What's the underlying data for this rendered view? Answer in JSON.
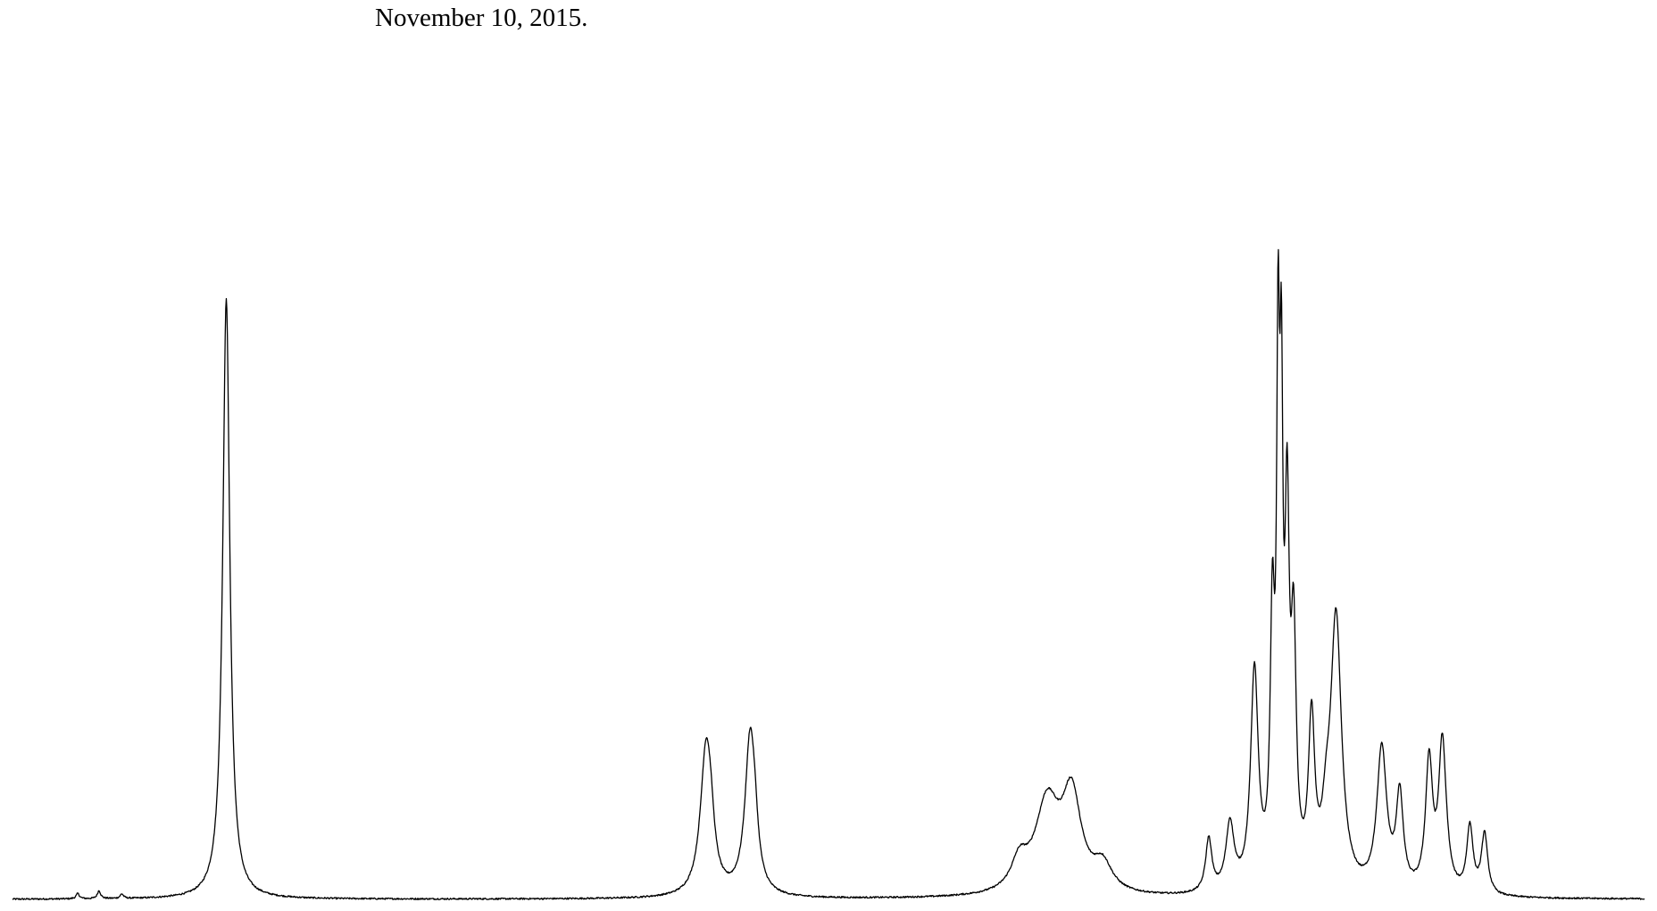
{
  "header": {
    "date_text": "November 10, 2015."
  },
  "colors": {
    "background": "#ffffff",
    "trace": "#000000"
  },
  "chart_data": {
    "type": "line",
    "title": "",
    "xlabel": "",
    "ylabel": "",
    "xlim": [
      0,
      1000
    ],
    "ylim": [
      0,
      100
    ],
    "grid": false,
    "axes_visible": false,
    "series": [
      {
        "name": "",
        "description_of_units": "relative position 0-1000 across trace, relative intensity 0-100",
        "peaks": [
          {
            "center": 40,
            "height": 0.6,
            "width": 1.2
          },
          {
            "center": 53,
            "height": 0.9,
            "width": 1.2
          },
          {
            "center": 67,
            "height": 0.5,
            "width": 1.2
          },
          {
            "center": 131,
            "height": 67.6,
            "width": 2.6
          },
          {
            "center": 425,
            "height": 16.5,
            "width": 4.2
          },
          {
            "center": 428,
            "height": 3.0,
            "width": 2.5
          },
          {
            "center": 452,
            "height": 17.8,
            "width": 3.8
          },
          {
            "center": 455,
            "height": 3.0,
            "width": 2.2
          },
          {
            "center": 617,
            "height": 3.2,
            "width": 6.0
          },
          {
            "center": 634,
            "height": 10.0,
            "width": 9.0
          },
          {
            "center": 649,
            "height": 10.5,
            "width": 7.0
          },
          {
            "center": 668,
            "height": 3.0,
            "width": 7.0
          },
          {
            "center": 733,
            "height": 6.0,
            "width": 2.3
          },
          {
            "center": 746,
            "height": 7.5,
            "width": 3.0
          },
          {
            "center": 761,
            "height": 24.5,
            "width": 2.8
          },
          {
            "center": 772,
            "height": 28.0,
            "width": 1.6
          },
          {
            "center": 775.5,
            "height": 52.0,
            "width": 1.1
          },
          {
            "center": 777.5,
            "height": 45.0,
            "width": 1.1
          },
          {
            "center": 781,
            "height": 38.0,
            "width": 1.6
          },
          {
            "center": 785,
            "height": 26.0,
            "width": 1.9
          },
          {
            "center": 796,
            "height": 18.0,
            "width": 2.3
          },
          {
            "center": 811,
            "height": 30.5,
            "width": 4.0
          },
          {
            "center": 805,
            "height": 5.0,
            "width": 3.0
          },
          {
            "center": 839,
            "height": 16.0,
            "width": 3.6
          },
          {
            "center": 850,
            "height": 10.5,
            "width": 2.6
          },
          {
            "center": 868,
            "height": 14.5,
            "width": 2.6
          },
          {
            "center": 876,
            "height": 15.0,
            "width": 2.6
          },
          {
            "center": 878,
            "height": 2.5,
            "width": 3.0
          },
          {
            "center": 893,
            "height": 7.5,
            "width": 2.3
          },
          {
            "center": 902,
            "height": 6.8,
            "width": 2.3
          }
        ]
      }
    ]
  }
}
